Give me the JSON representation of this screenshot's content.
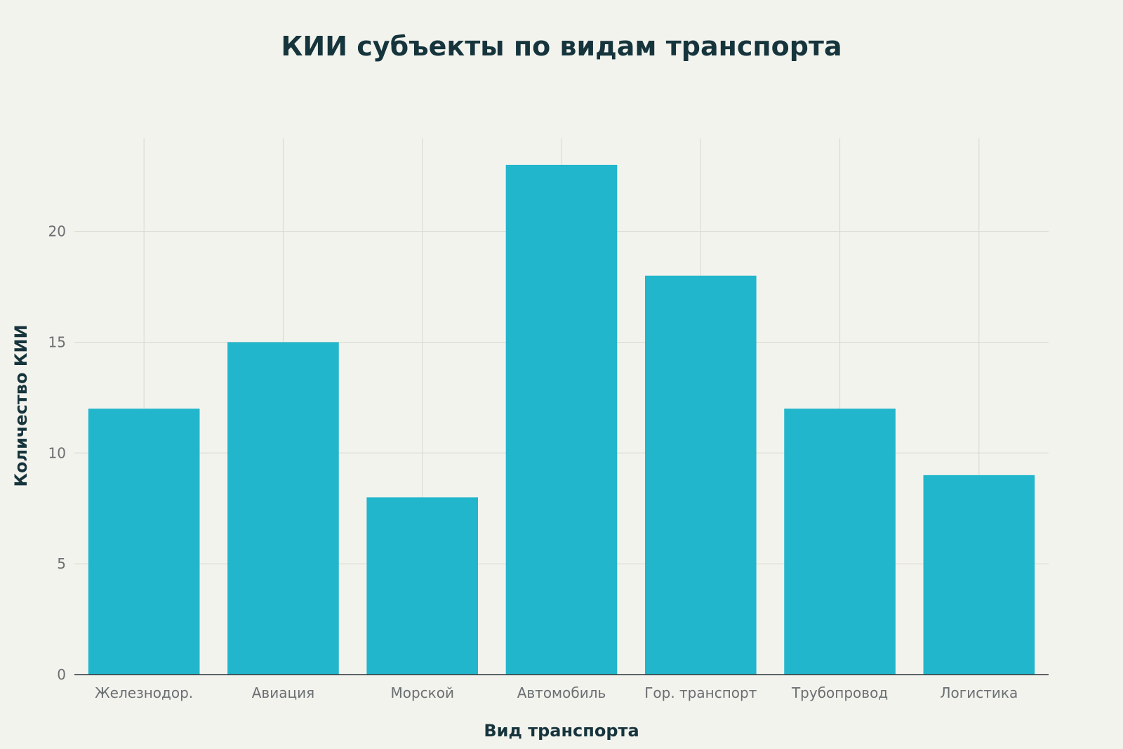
{
  "chart_data": {
    "type": "bar",
    "title": "КИИ субъекты по видам транспорта",
    "xlabel": "Вид транспорта",
    "ylabel": "Количество КИИ",
    "categories": [
      "Железнодор.",
      "Авиация",
      "Морской",
      "Автомобиль",
      "Гор. транспорт",
      "Трубопровод",
      "Логистика"
    ],
    "values": [
      12,
      15,
      8,
      23,
      18,
      12,
      9
    ],
    "ylim": [
      0,
      24.2
    ],
    "yticks": [
      0,
      5,
      10,
      15,
      20
    ],
    "grid": true,
    "bar_color": "#21b6cb"
  }
}
